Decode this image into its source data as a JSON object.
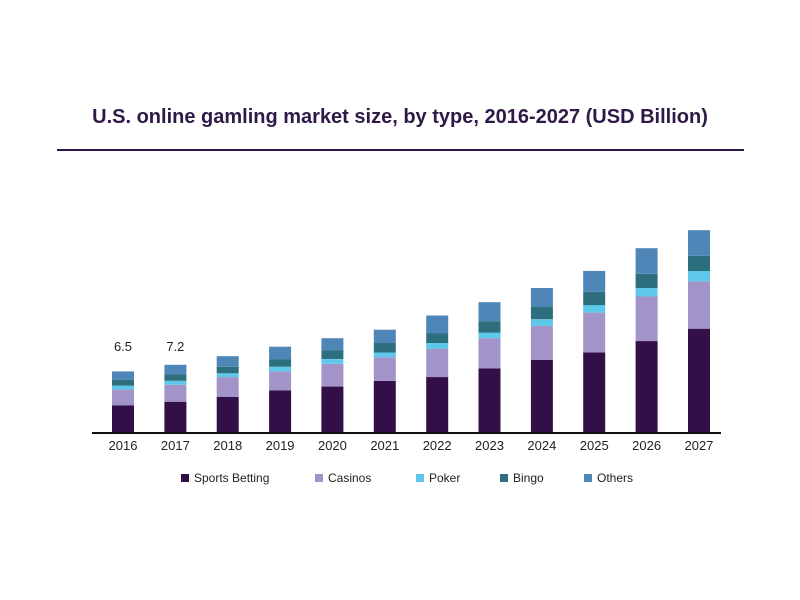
{
  "chart_data": {
    "type": "bar",
    "stacked": true,
    "title": "U.S. online gamling market size, by type, 2016-2027 (USD Billion)",
    "categories": [
      "2016",
      "2017",
      "2018",
      "2019",
      "2020",
      "2021",
      "2022",
      "2023",
      "2024",
      "2025",
      "2026",
      "2027"
    ],
    "series": [
      {
        "name": "Sports Betting",
        "color": "#330f48",
        "values": [
          2.9,
          3.3,
          3.8,
          4.5,
          4.9,
          5.5,
          5.9,
          6.8,
          7.7,
          8.5,
          9.7,
          11.0
        ]
      },
      {
        "name": "Casinos",
        "color": "#a293c8",
        "values": [
          1.7,
          1.8,
          2.1,
          2.0,
          2.4,
          2.5,
          3.0,
          3.2,
          3.6,
          4.2,
          4.7,
          5.0
        ]
      },
      {
        "name": "Poker",
        "color": "#5ec8ea",
        "values": [
          0.4,
          0.4,
          0.4,
          0.5,
          0.5,
          0.5,
          0.6,
          0.6,
          0.7,
          0.8,
          0.9,
          1.1
        ]
      },
      {
        "name": "Bingo",
        "color": "#2e6f7f",
        "values": [
          0.6,
          0.7,
          0.7,
          0.8,
          0.9,
          1.0,
          1.0,
          1.2,
          1.3,
          1.4,
          1.5,
          1.6
        ]
      },
      {
        "name": "Others",
        "color": "#4f86b8",
        "values": [
          0.9,
          1.0,
          1.1,
          1.3,
          1.3,
          1.4,
          1.9,
          2.0,
          2.0,
          2.2,
          2.7,
          2.7
        ]
      }
    ],
    "data_labels": [
      {
        "category": "2016",
        "text": "6.5"
      },
      {
        "category": "2017",
        "text": "7.2"
      }
    ],
    "ylim": [
      0,
      23
    ],
    "grid": false,
    "legend_position": "bottom"
  }
}
